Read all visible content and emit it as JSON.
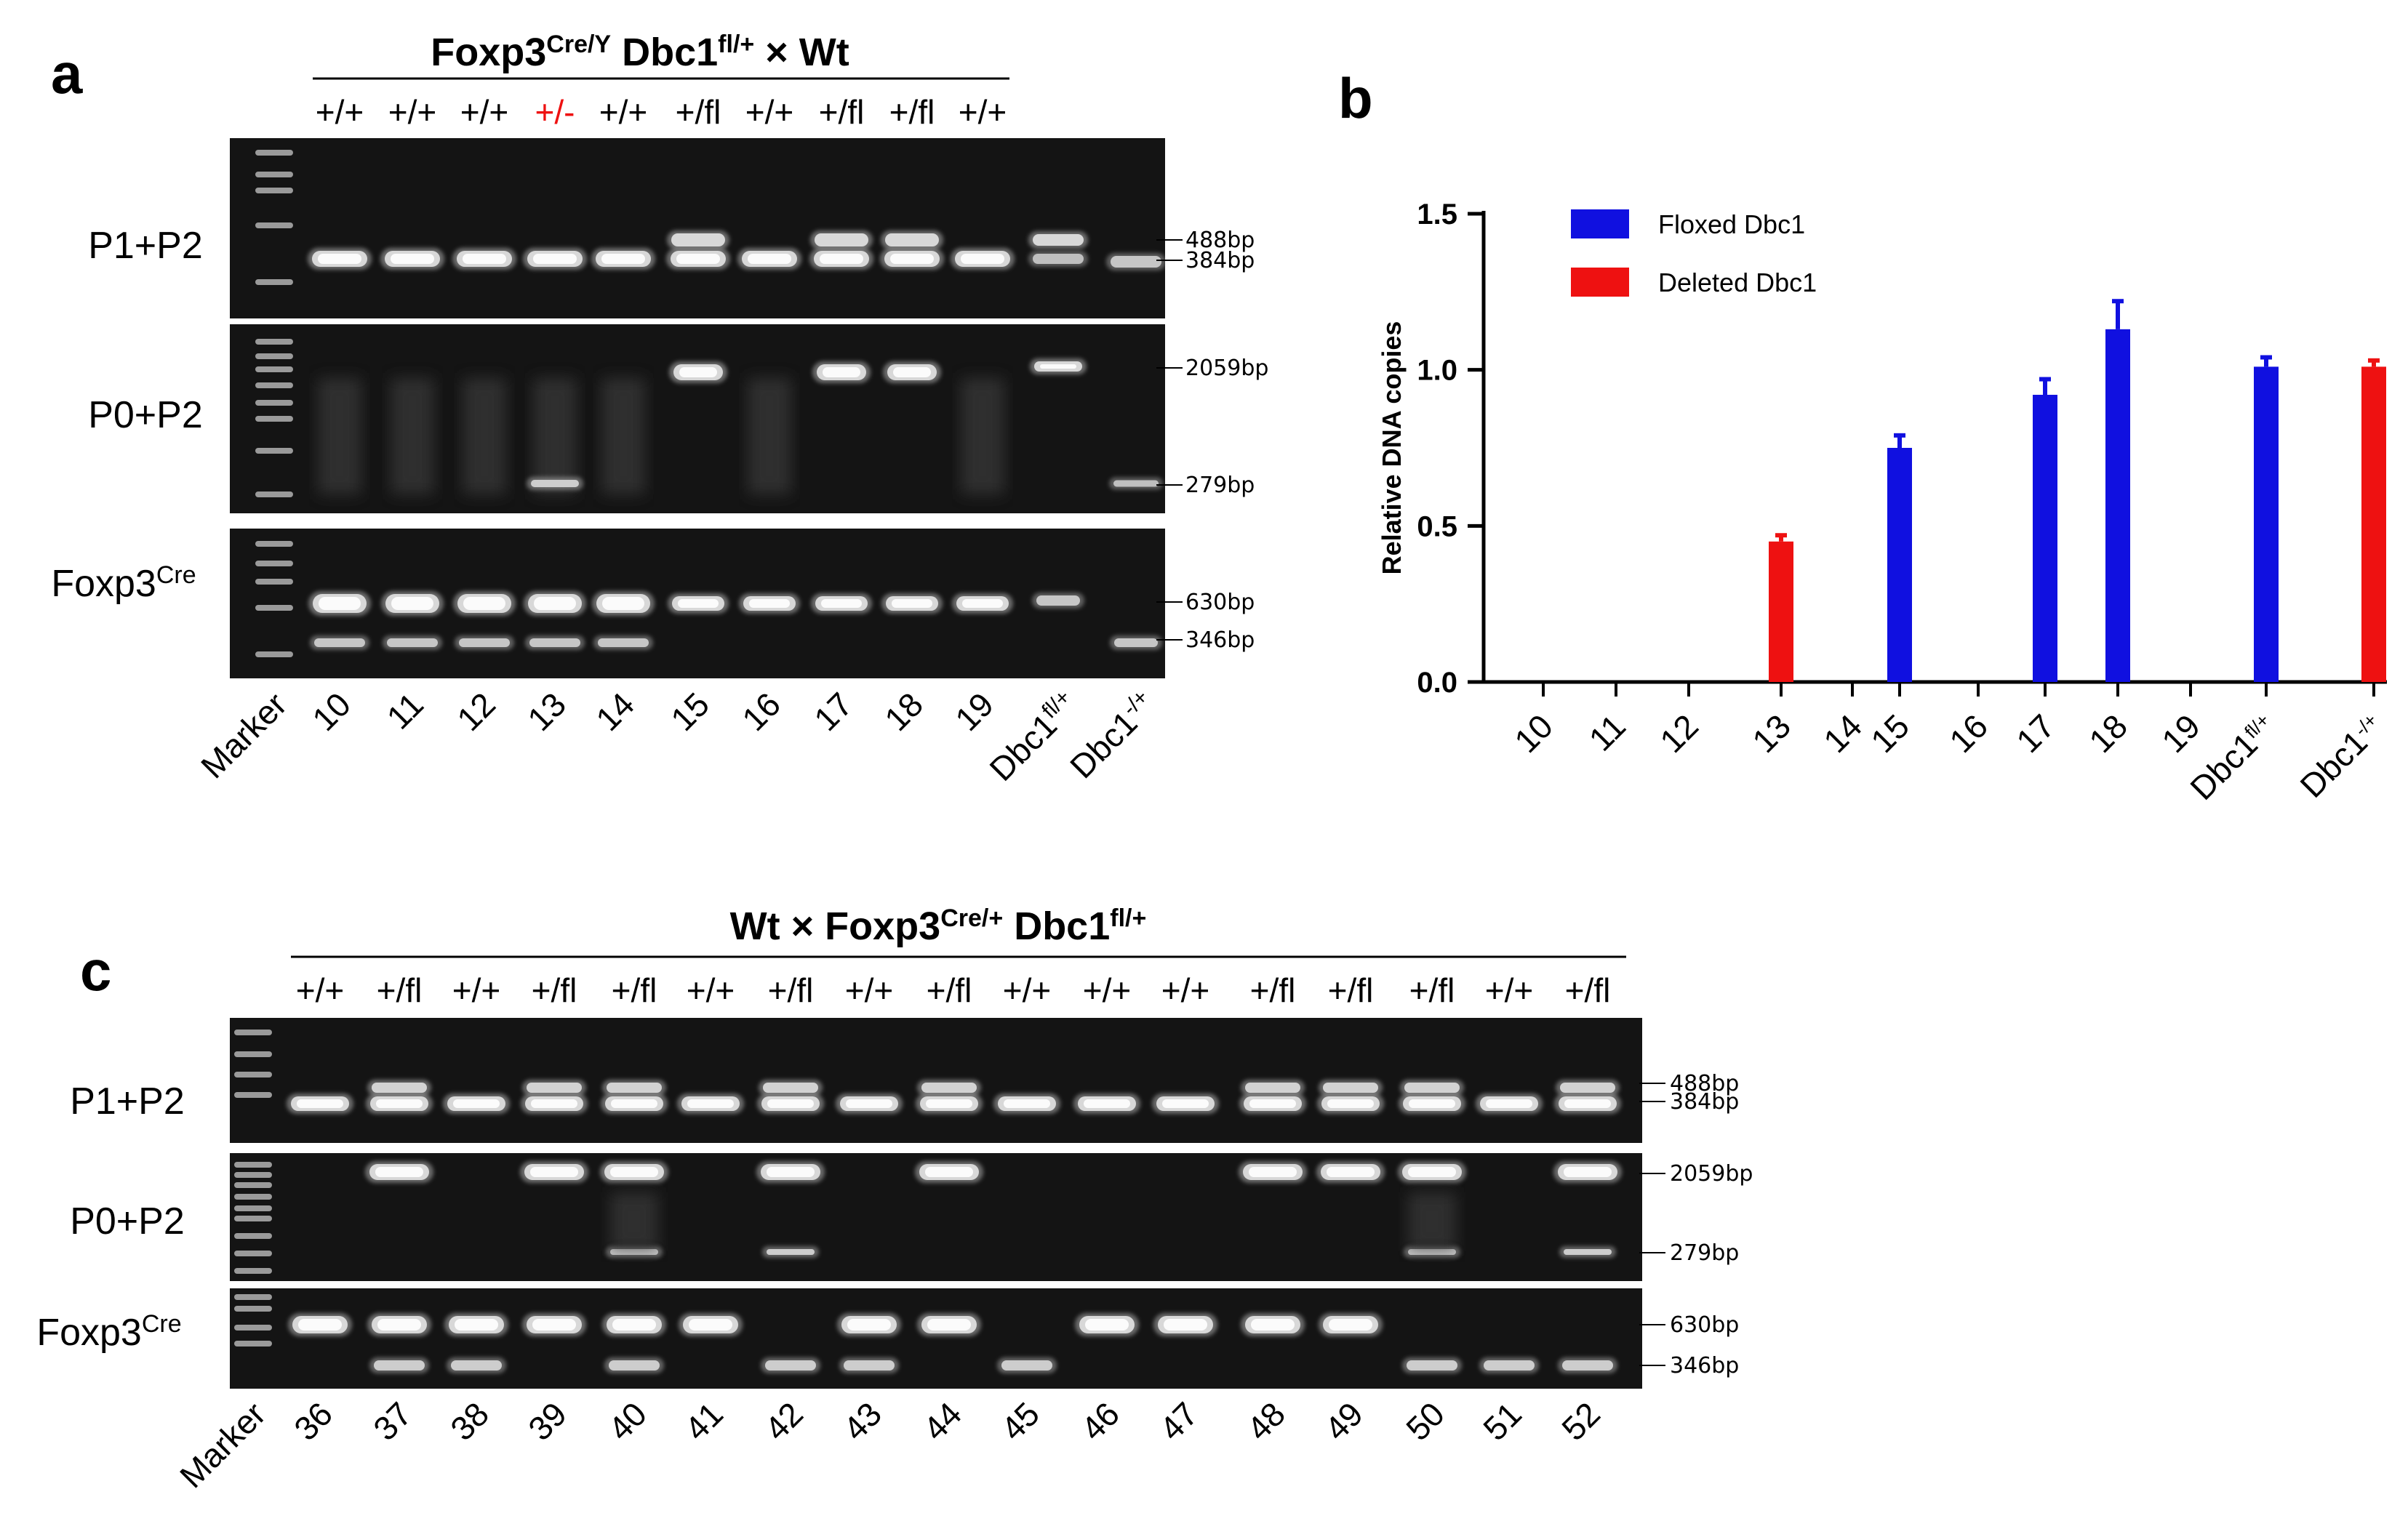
{
  "colors": {
    "floxed": "#1010e0",
    "deleted": "#ee1111",
    "heterozygous_text": "#ee1111",
    "gel_background": "#141414",
    "band": "#d8d8d8"
  },
  "panel_a": {
    "letter": "a",
    "cross": {
      "main1": "Foxp3",
      "sup1": "Cre/Y",
      "main2": " Dbc1",
      "sup2": "fl/+",
      "main3": " × Wt"
    },
    "genotypes": [
      "+/+",
      "+/+",
      "+/+",
      "+/-",
      "+/+",
      "+/fl",
      "+/+",
      "+/fl",
      "+/fl",
      "+/+"
    ],
    "rows": [
      {
        "main": "P1+P2",
        "sup": "",
        "bands": [
          "488bp",
          "384bp"
        ]
      },
      {
        "main": "P0+P2",
        "sup": "",
        "bands": [
          "2059bp",
          "279bp"
        ]
      },
      {
        "main": "Foxp3",
        "sup": "Cre",
        "bands": [
          "630bp",
          "346bp"
        ]
      }
    ],
    "marker_label": "Marker",
    "lanes": [
      "10",
      "11",
      "12",
      "13",
      "14",
      "15",
      "16",
      "17",
      "18",
      "19"
    ],
    "controls": [
      {
        "main": "Dbc1",
        "sup": "fl/+"
      },
      {
        "main": "Dbc1",
        "sup": "-/+"
      }
    ]
  },
  "panel_b": {
    "letter": "b",
    "chart_data": {
      "type": "bar",
      "ylabel": "Relative DNA copies",
      "xlabel": "",
      "ylim": [
        0,
        1.5
      ],
      "yticks": [
        "0.0",
        "0.5",
        "1.0",
        "1.5"
      ],
      "categories": [
        "10",
        "11",
        "12",
        "13",
        "14",
        "15",
        "16",
        "17",
        "18",
        "19",
        "Dbc1fl/+",
        "Dbc1-/+"
      ],
      "category_labels": [
        {
          "main": "10",
          "sup": ""
        },
        {
          "main": "11",
          "sup": ""
        },
        {
          "main": "12",
          "sup": ""
        },
        {
          "main": "13",
          "sup": ""
        },
        {
          "main": "14",
          "sup": ""
        },
        {
          "main": "15",
          "sup": ""
        },
        {
          "main": "16",
          "sup": ""
        },
        {
          "main": "17",
          "sup": ""
        },
        {
          "main": "18",
          "sup": ""
        },
        {
          "main": "19",
          "sup": ""
        },
        {
          "main": "Dbc1",
          "sup": "fl/+"
        },
        {
          "main": "Dbc1",
          "sup": "-/+"
        }
      ],
      "series": [
        {
          "name": "Floxed Dbc1",
          "color": "#1010e0",
          "values": [
            null,
            null,
            null,
            null,
            null,
            0.75,
            null,
            0.92,
            1.13,
            null,
            1.01,
            null
          ],
          "errors": [
            null,
            null,
            null,
            null,
            null,
            0.04,
            null,
            0.05,
            0.09,
            null,
            0.03,
            null
          ]
        },
        {
          "name": "Deleted Dbc1",
          "color": "#ee1111",
          "values": [
            null,
            null,
            null,
            0.45,
            null,
            null,
            null,
            null,
            null,
            null,
            null,
            1.01
          ],
          "errors": [
            null,
            null,
            null,
            0.02,
            null,
            null,
            null,
            null,
            null,
            null,
            null,
            0.02
          ]
        }
      ],
      "legend": "top-left"
    }
  },
  "panel_c": {
    "letter": "c",
    "cross": {
      "main1": "Wt × Foxp3",
      "sup1": "Cre/+",
      "main2": " Dbc1",
      "sup2": "fl/+",
      "main3": ""
    },
    "genotypes": [
      "+/+",
      "+/fl",
      "+/+",
      "+/fl",
      "+/fl",
      "+/+",
      "+/fl",
      "+/+",
      "+/fl",
      "+/+",
      "+/+",
      "+/+",
      "+/fl",
      "+/fl",
      "+/fl",
      "+/+",
      "+/fl"
    ],
    "rows": [
      {
        "main": "P1+P2",
        "sup": "",
        "bands": [
          "488bp",
          "384bp"
        ]
      },
      {
        "main": "P0+P2",
        "sup": "",
        "bands": [
          "2059bp",
          "279bp"
        ]
      },
      {
        "main": "Foxp3",
        "sup": "Cre",
        "bands": [
          "630bp",
          "346bp"
        ]
      }
    ],
    "marker_label": "Marker",
    "lanes": [
      "36",
      "37",
      "38",
      "39",
      "40",
      "41",
      "42",
      "43",
      "44",
      "45",
      "46",
      "47",
      "48",
      "49",
      "50",
      "51",
      "52"
    ]
  }
}
